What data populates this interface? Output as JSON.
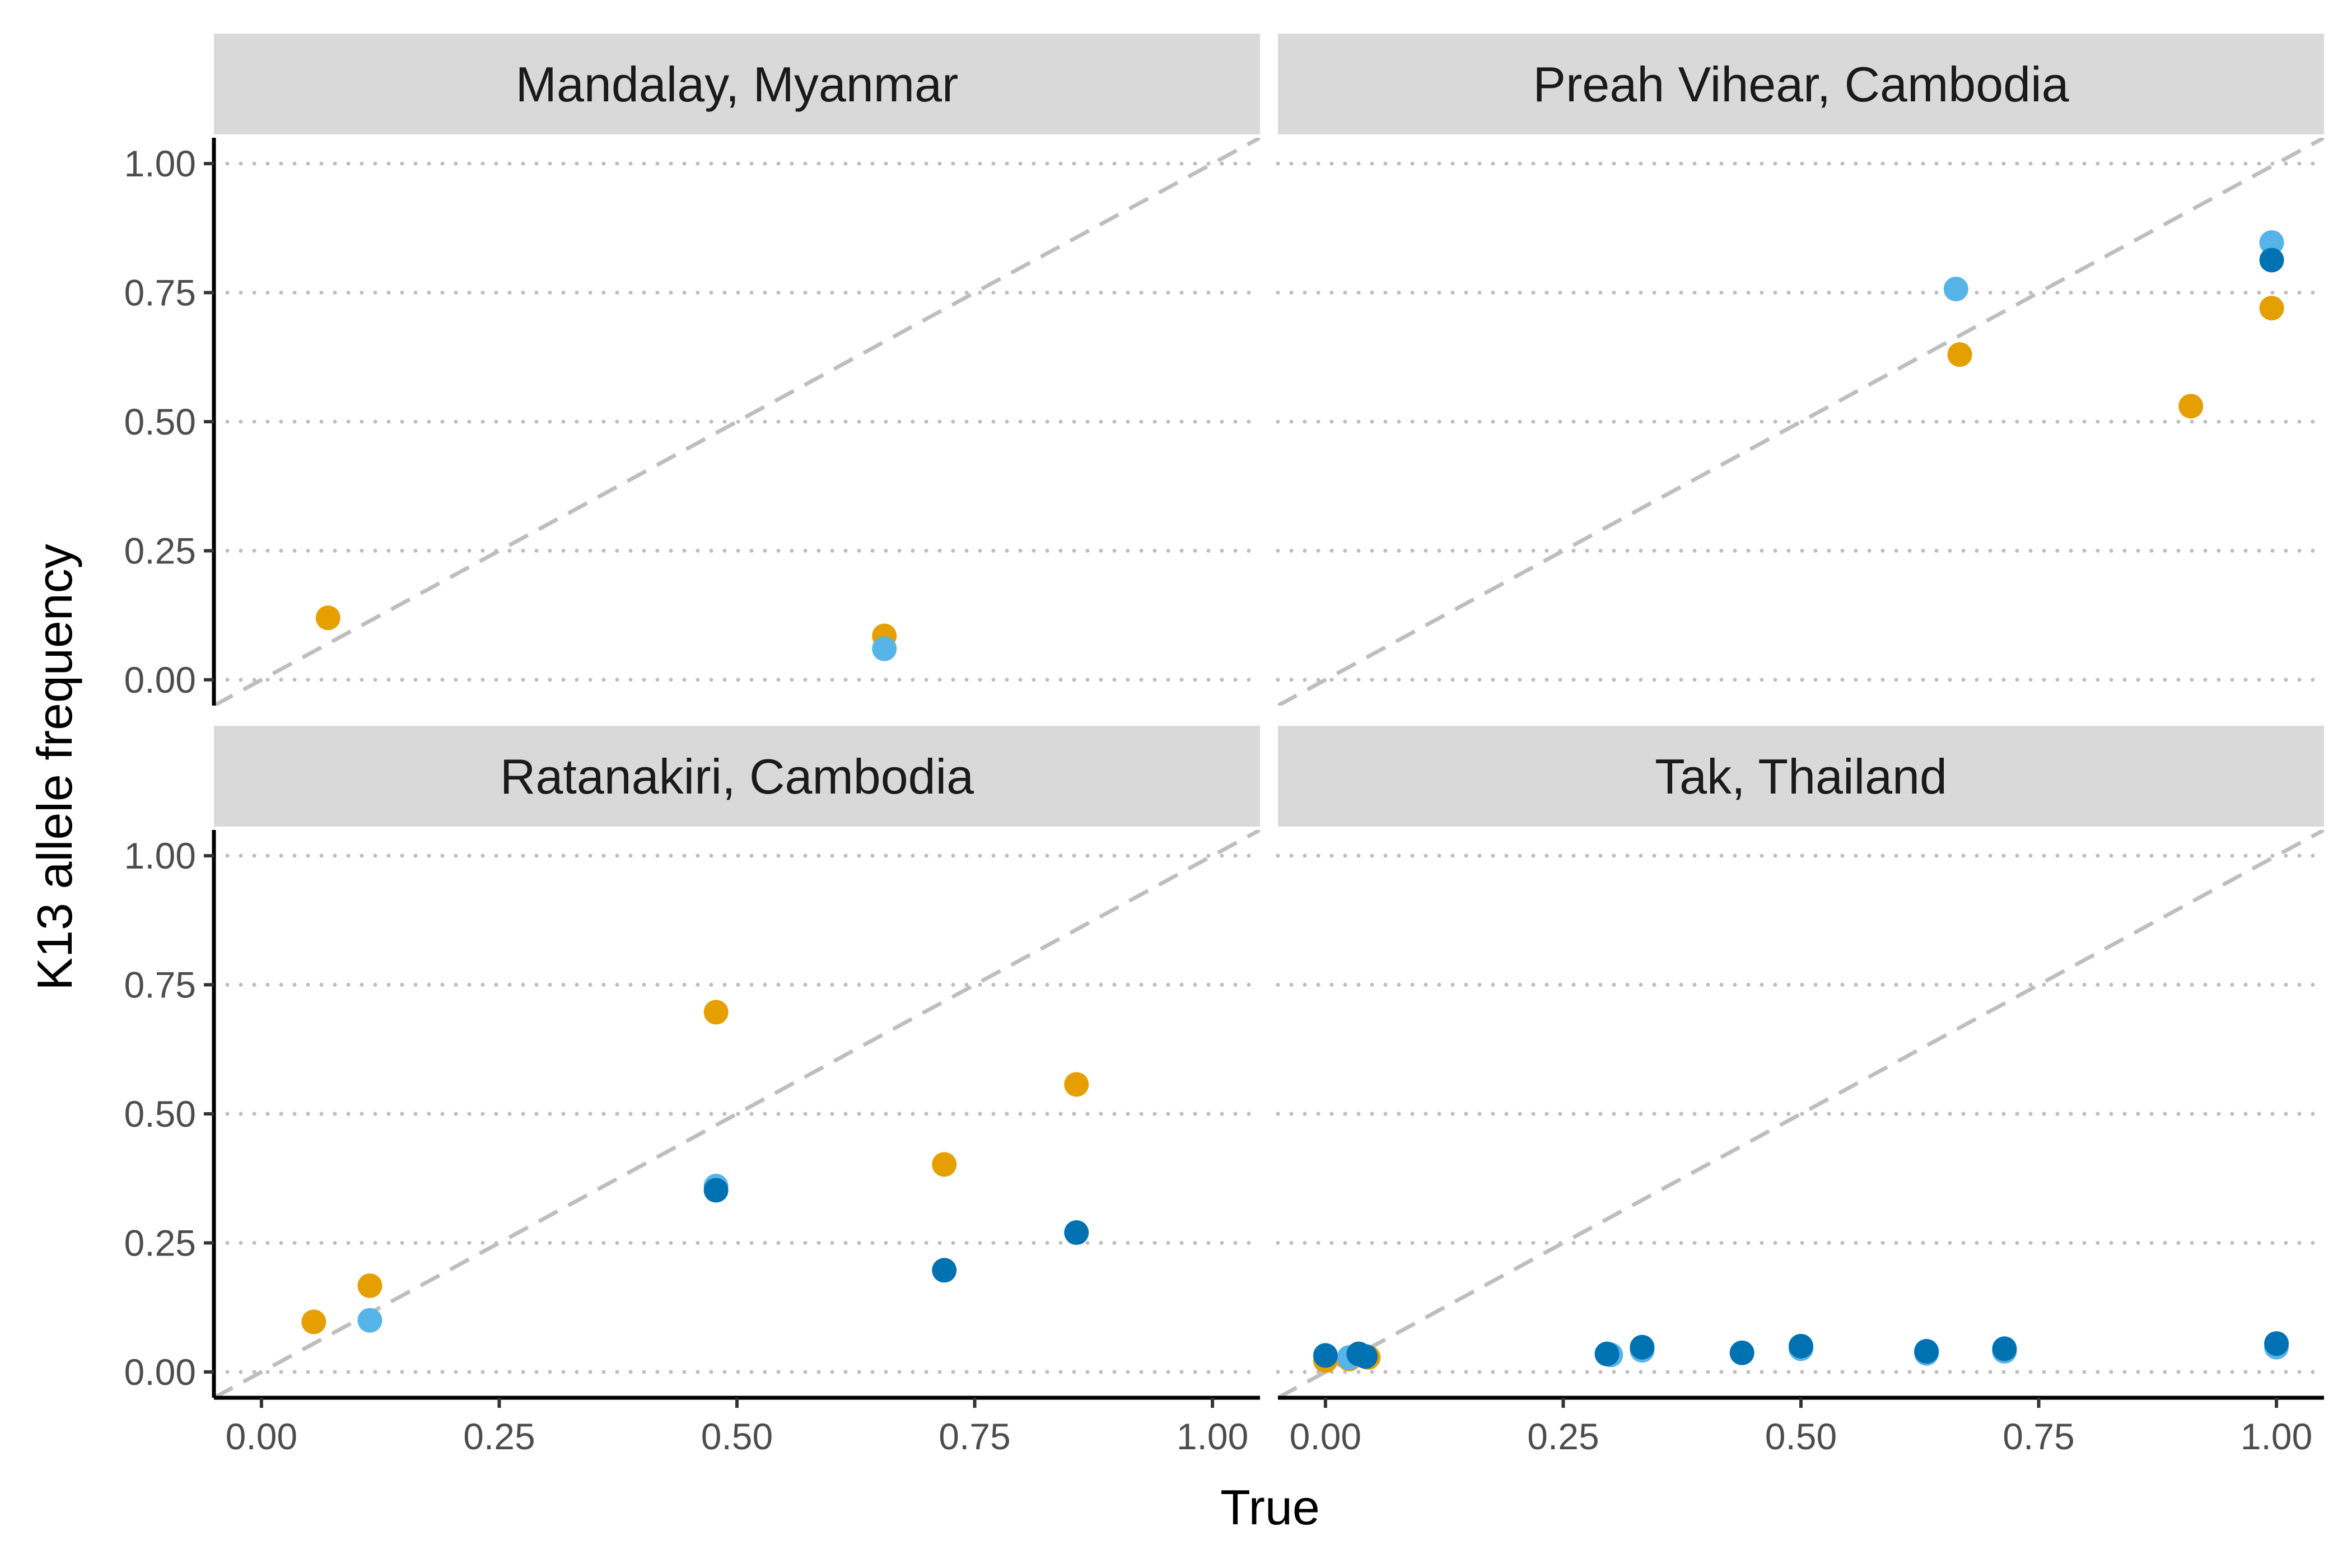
{
  "chart_data": {
    "type": "scatter",
    "layout": "facet_wrap 2x2",
    "xlabel": "True",
    "ylabel": "K13 allele frequency",
    "xlim": [
      -0.05,
      1.05
    ],
    "ylim": [
      -0.05,
      1.05
    ],
    "x_ticks": [
      "0.00",
      "0.25",
      "0.50",
      "0.75",
      "1.00"
    ],
    "y_ticks": [
      "0.00",
      "0.25",
      "0.50",
      "0.75",
      "1.00"
    ],
    "grid": "horizontal dotted major gridlines",
    "reference_line": "y = x, dashed grey",
    "colors": {
      "orange": "#E69F00",
      "light_blue": "#56B4E9",
      "dark_blue": "#0072B2",
      "reference": "#BEBEBE",
      "grid": "#BEBEBE",
      "strip_bg": "#D9D9D9"
    },
    "panels": [
      {
        "title": "Mandalay, Myanmar",
        "series": [
          {
            "color": "orange",
            "points": [
              [
                0.07,
                0.12
              ],
              [
                0.655,
                0.085
              ]
            ]
          },
          {
            "color": "light_blue",
            "points": [
              [
                0.655,
                0.06
              ]
            ]
          },
          {
            "color": "dark_blue",
            "points": []
          }
        ]
      },
      {
        "title": "Preah Vihear, Cambodia",
        "series": [
          {
            "color": "orange",
            "points": [
              [
                0.667,
                0.63
              ],
              [
                0.91,
                0.53
              ],
              [
                0.995,
                0.72
              ]
            ]
          },
          {
            "color": "light_blue",
            "points": [
              [
                0.663,
                0.757
              ],
              [
                0.995,
                0.847
              ]
            ]
          },
          {
            "color": "dark_blue",
            "points": [
              [
                0.995,
                0.813
              ]
            ]
          }
        ]
      },
      {
        "title": "Ratanakiri, Cambodia",
        "series": [
          {
            "color": "orange",
            "points": [
              [
                0.055,
                0.097
              ],
              [
                0.114,
                0.167
              ],
              [
                0.478,
                0.697
              ],
              [
                0.718,
                0.402
              ],
              [
                0.857,
                0.557
              ]
            ]
          },
          {
            "color": "light_blue",
            "points": [
              [
                0.114,
                0.1
              ],
              [
                0.478,
                0.36
              ]
            ]
          },
          {
            "color": "dark_blue",
            "points": [
              [
                0.478,
                0.352
              ],
              [
                0.718,
                0.197
              ],
              [
                0.857,
                0.27
              ]
            ]
          }
        ]
      },
      {
        "title": "Tak, Thailand",
        "series": [
          {
            "color": "orange",
            "points": [
              [
                0.0,
                0.022
              ],
              [
                0.025,
                0.025
              ],
              [
                0.045,
                0.028
              ]
            ]
          },
          {
            "color": "light_blue",
            "points": [
              [
                0.025,
                0.028
              ],
              [
                0.3,
                0.033
              ],
              [
                0.333,
                0.042
              ],
              [
                0.5,
                0.045
              ],
              [
                0.632,
                0.036
              ],
              [
                0.714,
                0.04
              ],
              [
                1.0,
                0.048
              ]
            ]
          },
          {
            "color": "dark_blue",
            "points": [
              [
                0.0,
                0.032
              ],
              [
                0.035,
                0.035
              ],
              [
                0.042,
                0.03
              ],
              [
                0.296,
                0.035
              ],
              [
                0.333,
                0.048
              ],
              [
                0.438,
                0.037
              ],
              [
                0.5,
                0.05
              ],
              [
                0.632,
                0.04
              ],
              [
                0.714,
                0.045
              ],
              [
                1.0,
                0.055
              ]
            ]
          }
        ]
      }
    ]
  }
}
